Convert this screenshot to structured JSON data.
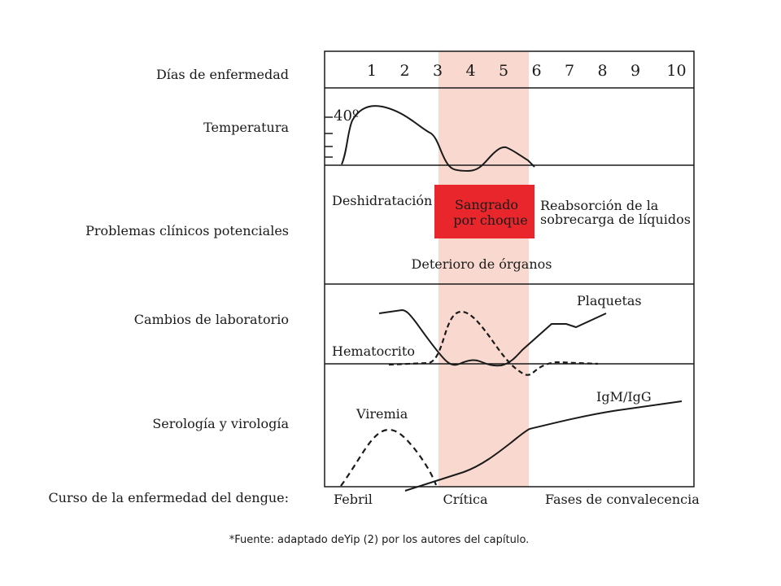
{
  "row_labels": {
    "days": "Días de enfermedad",
    "temperature": "Temperatura",
    "clinical": "Problemas clínicos potenciales",
    "lab": "Cambios de laboratorio",
    "serology": "Serología y virología",
    "course": "Curso de la enfermedad del dengue:"
  },
  "days": [
    "1",
    "2",
    "3",
    "4",
    "5",
    "6",
    "7",
    "8",
    "9",
    "10"
  ],
  "temperature_mark": "40º",
  "clinical": {
    "dehydration": "Deshidratación",
    "bleeding_line1": "Sangrado",
    "bleeding_line2": "por choque",
    "reabsorption_line1": "Reabsorción de la",
    "reabsorption_line2": "sobrecarga de líquidos",
    "organ": "Deterioro de órganos"
  },
  "lab": {
    "platelets": "Plaquetas",
    "hematocrit": "Hematocrito"
  },
  "serology": {
    "viremia": "Viremia",
    "igm": "IgM/IgG"
  },
  "phases": {
    "febrile": "Febril",
    "critical": "Crítica",
    "convalescent": "Fases de convalecencia"
  },
  "footnote": "*Fuente: adaptado deYip (2) por los autores del capítulo.",
  "colors": {
    "critical_band": "#f9d9cf",
    "bleeding_box": "#e8262b",
    "line": "#1a1a1a"
  }
}
